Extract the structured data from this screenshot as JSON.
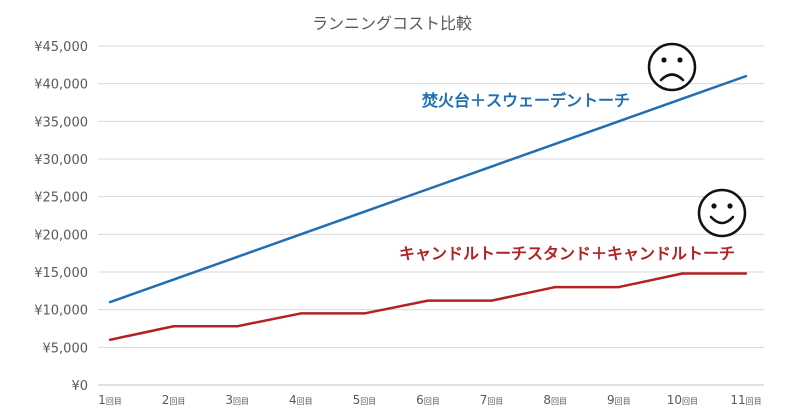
{
  "chart_data": {
    "type": "line",
    "title": "ランニングコスト比較",
    "xlabel": "",
    "ylabel": "",
    "categories": [
      "1回目",
      "2回目",
      "3回目",
      "4回目",
      "5回目",
      "6回目",
      "7回目",
      "8回目",
      "9回目",
      "10回目",
      "11回目"
    ],
    "category_numbers": [
      "1",
      "2",
      "3",
      "4",
      "5",
      "6",
      "7",
      "8",
      "9",
      "10",
      "11"
    ],
    "category_suffix": "回目",
    "y_ticks": [
      "¥0",
      "¥5,000",
      "¥10,000",
      "¥15,000",
      "¥20,000",
      "¥25,000",
      "¥30,000",
      "¥35,000",
      "¥40,000",
      "¥45,000"
    ],
    "ylim": [
      0,
      45000
    ],
    "y_step": 5000,
    "grid": true,
    "legend": "inline labels",
    "series": [
      {
        "name": "焚火台＋スウェーデントーチ",
        "color": "#1f6fb2",
        "face": "sad",
        "values": [
          11000,
          14000,
          17000,
          20000,
          23000,
          26000,
          29000,
          32000,
          35000,
          38000,
          41000
        ]
      },
      {
        "name": "キャンドルトーチスタンド＋キャンドルトーチ",
        "color": "#b22222",
        "face": "happy",
        "values": [
          6000,
          7800,
          7800,
          9500,
          9500,
          11200,
          11200,
          13000,
          13000,
          14800,
          14800
        ]
      }
    ]
  }
}
